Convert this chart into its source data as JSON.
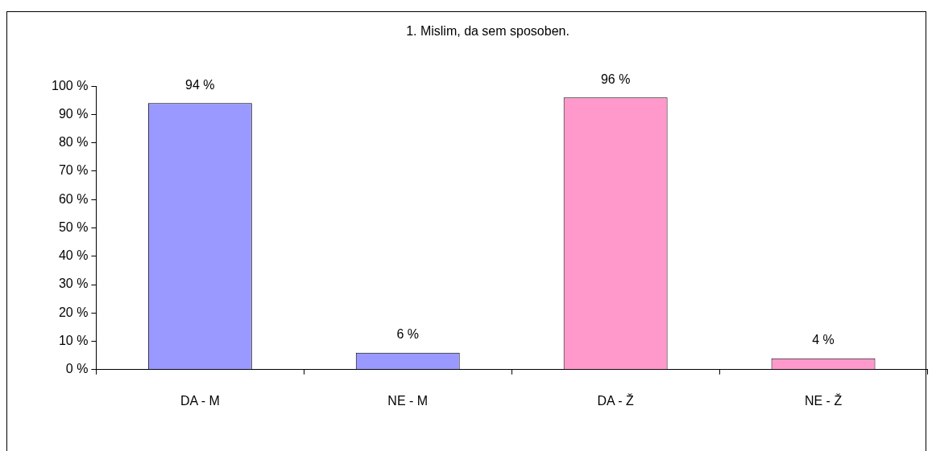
{
  "chart_data": {
    "type": "bar",
    "title": "1. Mislim, da sem sposoben.",
    "categories": [
      "DA - M",
      "NE - M",
      "DA - Ž",
      "NE - Ž"
    ],
    "values": [
      94,
      6,
      96,
      4
    ],
    "colors": [
      "#9999ff",
      "#9999ff",
      "#ff99cc",
      "#ff99cc"
    ],
    "value_labels": [
      "94 %",
      "6 %",
      "96 %",
      "4 %"
    ],
    "ylim": [
      0,
      100
    ],
    "yticks": [
      {
        "value": 0,
        "label": "0 %"
      },
      {
        "value": 10,
        "label": "10 %"
      },
      {
        "value": 20,
        "label": "20 %"
      },
      {
        "value": 30,
        "label": "30 %"
      },
      {
        "value": 40,
        "label": "40 %"
      },
      {
        "value": 50,
        "label": "50 %"
      },
      {
        "value": 60,
        "label": "60 %"
      },
      {
        "value": 70,
        "label": "70 %"
      },
      {
        "value": 80,
        "label": "80 %"
      },
      {
        "value": 90,
        "label": "90 %"
      },
      {
        "value": 100,
        "label": "100 %"
      }
    ],
    "grid": false,
    "legend": false
  }
}
